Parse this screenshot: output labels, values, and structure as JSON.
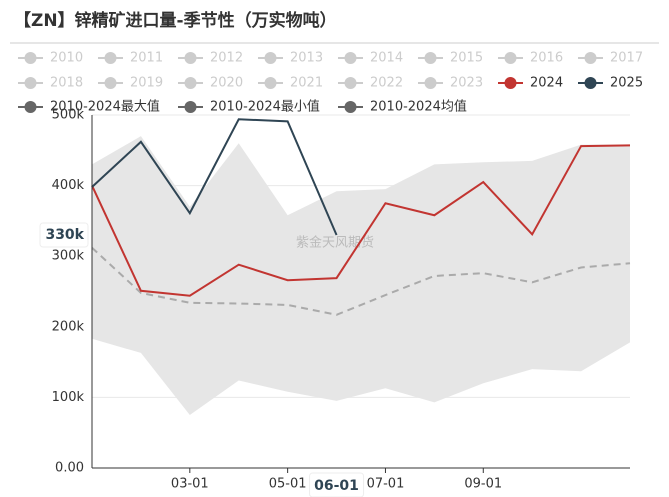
{
  "chart_data": {
    "type": "seasonal-line",
    "title": "【ZN】锌精矿进口量-季节性（万实物吨）",
    "watermark": "紫金天风期货",
    "categories": [
      null,
      null,
      "03-01",
      null,
      "05-01",
      null,
      "07-01",
      null,
      "09-01",
      null,
      null,
      null
    ],
    "inactive_legend": [
      "2010",
      "2011",
      "2012",
      "2013",
      "2014",
      "2015",
      "2016",
      "2017",
      "2018",
      "2019",
      "2020",
      "2021",
      "2022",
      "2023"
    ],
    "inactive_color": "#cccccc",
    "band_color": "#e6e6e6",
    "mean_line_color": "#aaaaaa",
    "series": [
      {
        "name": "2024",
        "color": "#c23531",
        "values": [
          400000,
          251000,
          244000,
          288000,
          266000,
          269000,
          375000,
          358000,
          405000,
          331000,
          456000,
          457000
        ]
      },
      {
        "name": "2025",
        "color": "#2f4554",
        "values": [
          398000,
          462000,
          361000,
          494000,
          491000,
          330000,
          null,
          null,
          null,
          null,
          null,
          null
        ]
      },
      {
        "name": "2010-2024最大值",
        "color": "#666666",
        "values": [
          430000,
          470000,
          370000,
          460000,
          358000,
          392000,
          395000,
          430000,
          433000,
          435000,
          458000,
          458000
        ]
      },
      {
        "name": "2010-2024最小值",
        "color": "#666666",
        "values": [
          183000,
          163000,
          75000,
          124000,
          108000,
          95000,
          113000,
          93000,
          120000,
          140000,
          137000,
          178000
        ]
      },
      {
        "name": "2010-2024均值",
        "color": "#666666",
        "values": [
          312000,
          248000,
          234000,
          233000,
          231000,
          217000,
          245000,
          272000,
          276000,
          263000,
          284000,
          290000
        ]
      }
    ],
    "ylim": [
      0,
      500000
    ],
    "yticks": [
      {
        "value": 0,
        "label": "0.00"
      },
      {
        "value": 100000,
        "label": "100k"
      },
      {
        "value": 200000,
        "label": "200k"
      },
      {
        "value": 300000,
        "label": "300k"
      },
      {
        "value": 400000,
        "label": "400k"
      },
      {
        "value": 500000,
        "label": "500k"
      }
    ],
    "grid": true,
    "axis_pointer": {
      "category_index": 5,
      "x_label": "06-01",
      "y": {
        "value": 330000,
        "label": "330k"
      }
    }
  }
}
